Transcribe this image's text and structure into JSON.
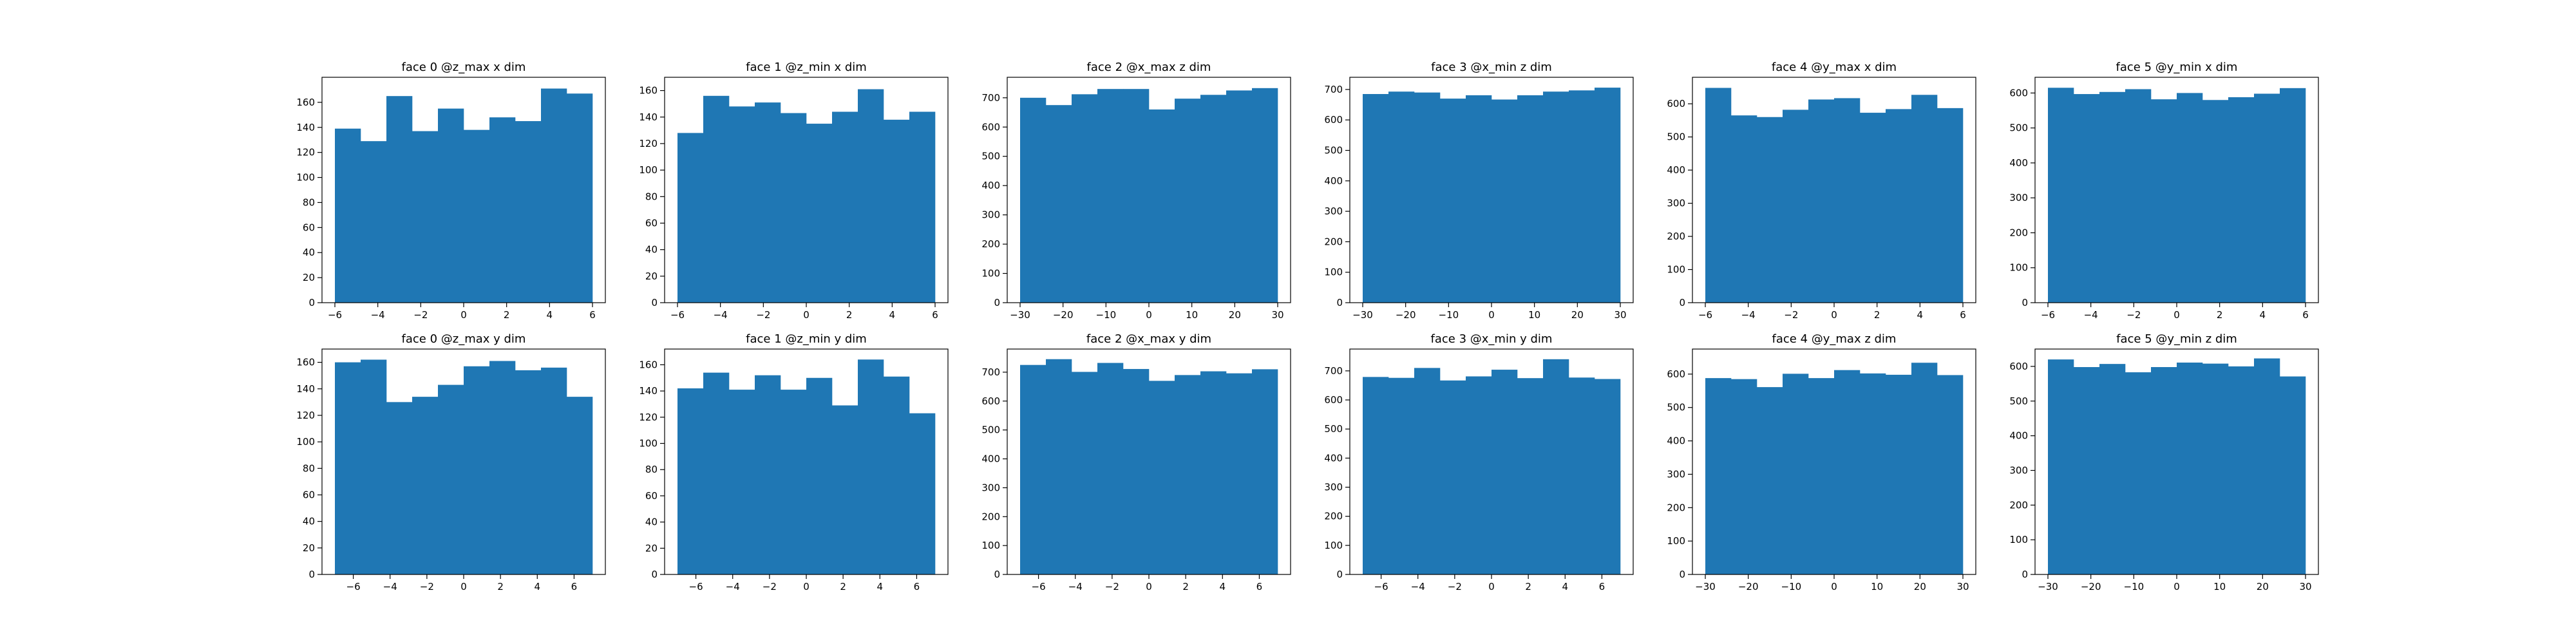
{
  "chart_data": [
    {
      "type": "bar",
      "title": "face 0 @z_max x dim",
      "xlabel": "",
      "ylabel": "",
      "x_ticks": [
        "−6",
        "−4",
        "−2",
        "0",
        "2",
        "4",
        "6"
      ],
      "y_ticks": [
        "0",
        "20",
        "40",
        "60",
        "80",
        "100",
        "120",
        "140",
        "160"
      ],
      "xlim": [
        -6.6,
        6.6
      ],
      "ylim": [
        0,
        180
      ],
      "bin_edges": [
        -6,
        -4.8,
        -3.6,
        -2.4,
        -1.2,
        0,
        1.2,
        2.4,
        3.6,
        4.8,
        6
      ],
      "values": [
        139,
        129,
        165,
        137,
        155,
        138,
        148,
        145,
        171,
        167
      ],
      "color": "#1f77b4"
    },
    {
      "type": "bar",
      "title": "face 1 @z_min x dim",
      "xlabel": "",
      "ylabel": "",
      "x_ticks": [
        "−6",
        "−4",
        "−2",
        "0",
        "2",
        "4",
        "6"
      ],
      "y_ticks": [
        "0",
        "20",
        "40",
        "60",
        "80",
        "100",
        "120",
        "140",
        "160"
      ],
      "xlim": [
        -6.6,
        6.6
      ],
      "ylim": [
        0,
        170
      ],
      "bin_edges": [
        -6,
        -4.8,
        -3.6,
        -2.4,
        -1.2,
        0,
        1.2,
        2.4,
        3.6,
        4.8,
        6
      ],
      "values": [
        128,
        156,
        148,
        151,
        143,
        135,
        144,
        161,
        138,
        144
      ],
      "color": "#1f77b4"
    },
    {
      "type": "bar",
      "title": "face 2 @x_max z dim",
      "xlabel": "",
      "ylabel": "",
      "x_ticks": [
        "−30",
        "−20",
        "−10",
        "0",
        "10",
        "20",
        "30"
      ],
      "y_ticks": [
        "0",
        "100",
        "200",
        "300",
        "400",
        "500",
        "600",
        "700"
      ],
      "xlim": [
        -33,
        33
      ],
      "ylim": [
        0,
        770
      ],
      "bin_edges": [
        -30,
        -24,
        -18,
        -12,
        -6,
        0,
        6,
        12,
        18,
        24,
        30
      ],
      "values": [
        700,
        675,
        712,
        730,
        730,
        660,
        697,
        710,
        725,
        733
      ],
      "color": "#1f77b4"
    },
    {
      "type": "bar",
      "title": "face 3 @x_min z dim",
      "xlabel": "",
      "ylabel": "",
      "x_ticks": [
        "−30",
        "−20",
        "−10",
        "0",
        "10",
        "20",
        "30"
      ],
      "y_ticks": [
        "0",
        "100",
        "200",
        "300",
        "400",
        "500",
        "600",
        "700"
      ],
      "xlim": [
        -33,
        33
      ],
      "ylim": [
        0,
        740
      ],
      "bin_edges": [
        -30,
        -24,
        -18,
        -12,
        -6,
        0,
        6,
        12,
        18,
        24,
        30
      ],
      "values": [
        685,
        693,
        690,
        670,
        681,
        667,
        681,
        693,
        697,
        706
      ],
      "color": "#1f77b4"
    },
    {
      "type": "bar",
      "title": "face 4 @y_max x dim",
      "xlabel": "",
      "ylabel": "",
      "x_ticks": [
        "−6",
        "−4",
        "−2",
        "0",
        "2",
        "4",
        "6"
      ],
      "y_ticks": [
        "0",
        "100",
        "200",
        "300",
        "400",
        "500",
        "600"
      ],
      "xlim": [
        -6.6,
        6.6
      ],
      "ylim": [
        0,
        680
      ],
      "bin_edges": [
        -6,
        -4.8,
        -3.6,
        -2.4,
        -1.2,
        0,
        1.2,
        2.4,
        3.6,
        4.8,
        6
      ],
      "values": [
        648,
        565,
        560,
        582,
        613,
        617,
        573,
        584,
        627,
        587
      ],
      "color": "#1f77b4"
    },
    {
      "type": "bar",
      "title": "face 5 @y_min x dim",
      "xlabel": "",
      "ylabel": "",
      "x_ticks": [
        "−6",
        "−4",
        "−2",
        "0",
        "2",
        "4",
        "6"
      ],
      "y_ticks": [
        "0",
        "100",
        "200",
        "300",
        "400",
        "500",
        "600"
      ],
      "xlim": [
        -6.6,
        6.6
      ],
      "ylim": [
        0,
        645
      ],
      "bin_edges": [
        -6,
        -4.8,
        -3.6,
        -2.4,
        -1.2,
        0,
        1.2,
        2.4,
        3.6,
        4.8,
        6
      ],
      "values": [
        615,
        597,
        603,
        611,
        582,
        600,
        580,
        588,
        598,
        614
      ],
      "color": "#1f77b4"
    },
    {
      "type": "bar",
      "title": "face 0 @z_max y dim",
      "xlabel": "",
      "ylabel": "",
      "x_ticks": [
        "−6",
        "−4",
        "−2",
        "0",
        "2",
        "4",
        "6"
      ],
      "y_ticks": [
        "0",
        "20",
        "40",
        "60",
        "80",
        "100",
        "120",
        "140",
        "160"
      ],
      "xlim": [
        -7.7,
        7.7
      ],
      "ylim": [
        0,
        170
      ],
      "bin_edges": [
        -7,
        -5.6,
        -4.2,
        -2.8,
        -1.4,
        0,
        1.4,
        2.8,
        4.2,
        5.6,
        7
      ],
      "values": [
        160,
        162,
        130,
        134,
        143,
        157,
        161,
        154,
        156,
        134
      ],
      "color": "#1f77b4"
    },
    {
      "type": "bar",
      "title": "face 1 @z_min y dim",
      "xlabel": "",
      "ylabel": "",
      "x_ticks": [
        "−6",
        "−4",
        "−2",
        "0",
        "2",
        "4",
        "6"
      ],
      "y_ticks": [
        "0",
        "20",
        "40",
        "60",
        "80",
        "100",
        "120",
        "140",
        "160"
      ],
      "xlim": [
        -7.7,
        7.7
      ],
      "ylim": [
        0,
        172
      ],
      "bin_edges": [
        -7,
        -5.6,
        -4.2,
        -2.8,
        -1.4,
        0,
        1.4,
        2.8,
        4.2,
        5.6,
        7
      ],
      "values": [
        142,
        154,
        141,
        152,
        141,
        150,
        129,
        164,
        151,
        123
      ],
      "color": "#1f77b4"
    },
    {
      "type": "bar",
      "title": "face 2 @x_max y dim",
      "xlabel": "",
      "ylabel": "",
      "x_ticks": [
        "−6",
        "−4",
        "−2",
        "0",
        "2",
        "4",
        "6"
      ],
      "y_ticks": [
        "0",
        "100",
        "200",
        "300",
        "400",
        "500",
        "600",
        "700"
      ],
      "xlim": [
        -7.7,
        7.7
      ],
      "ylim": [
        0,
        780
      ],
      "bin_edges": [
        -7,
        -5.6,
        -4.2,
        -2.8,
        -1.4,
        0,
        1.4,
        2.8,
        4.2,
        5.6,
        7
      ],
      "values": [
        725,
        745,
        701,
        732,
        711,
        670,
        690,
        703,
        696,
        710
      ],
      "color": "#1f77b4"
    },
    {
      "type": "bar",
      "title": "face 3 @x_min y dim",
      "xlabel": "",
      "ylabel": "",
      "x_ticks": [
        "−6",
        "−4",
        "−2",
        "0",
        "2",
        "4",
        "6"
      ],
      "y_ticks": [
        "0",
        "100",
        "200",
        "300",
        "400",
        "500",
        "600",
        "700"
      ],
      "xlim": [
        -7.7,
        7.7
      ],
      "ylim": [
        0,
        775
      ],
      "bin_edges": [
        -7,
        -5.6,
        -4.2,
        -2.8,
        -1.4,
        0,
        1.4,
        2.8,
        4.2,
        5.6,
        7
      ],
      "values": [
        679,
        676,
        710,
        667,
        681,
        704,
        675,
        740,
        677,
        672
      ],
      "color": "#1f77b4"
    },
    {
      "type": "bar",
      "title": "face 4 @y_max z dim",
      "xlabel": "",
      "ylabel": "",
      "x_ticks": [
        "−30",
        "−20",
        "−10",
        "0",
        "10",
        "20",
        "30"
      ],
      "y_ticks": [
        "0",
        "100",
        "200",
        "300",
        "400",
        "500",
        "600"
      ],
      "xlim": [
        -33,
        33
      ],
      "ylim": [
        0,
        675
      ],
      "bin_edges": [
        -30,
        -24,
        -18,
        -12,
        -6,
        0,
        6,
        12,
        18,
        24,
        30
      ],
      "values": [
        588,
        585,
        561,
        601,
        588,
        612,
        602,
        598,
        634,
        597
      ],
      "color": "#1f77b4"
    },
    {
      "type": "bar",
      "title": "face 5 @y_min z dim",
      "xlabel": "",
      "ylabel": "",
      "x_ticks": [
        "−30",
        "−20",
        "−10",
        "0",
        "10",
        "20",
        "30"
      ],
      "y_ticks": [
        "0",
        "100",
        "200",
        "300",
        "400",
        "500",
        "600"
      ],
      "xlim": [
        -33,
        33
      ],
      "ylim": [
        0,
        650
      ],
      "bin_edges": [
        -30,
        -24,
        -18,
        -12,
        -6,
        0,
        6,
        12,
        18,
        24,
        30
      ],
      "values": [
        620,
        598,
        607,
        583,
        598,
        611,
        608,
        600,
        623,
        571
      ],
      "color": "#1f77b4"
    }
  ]
}
